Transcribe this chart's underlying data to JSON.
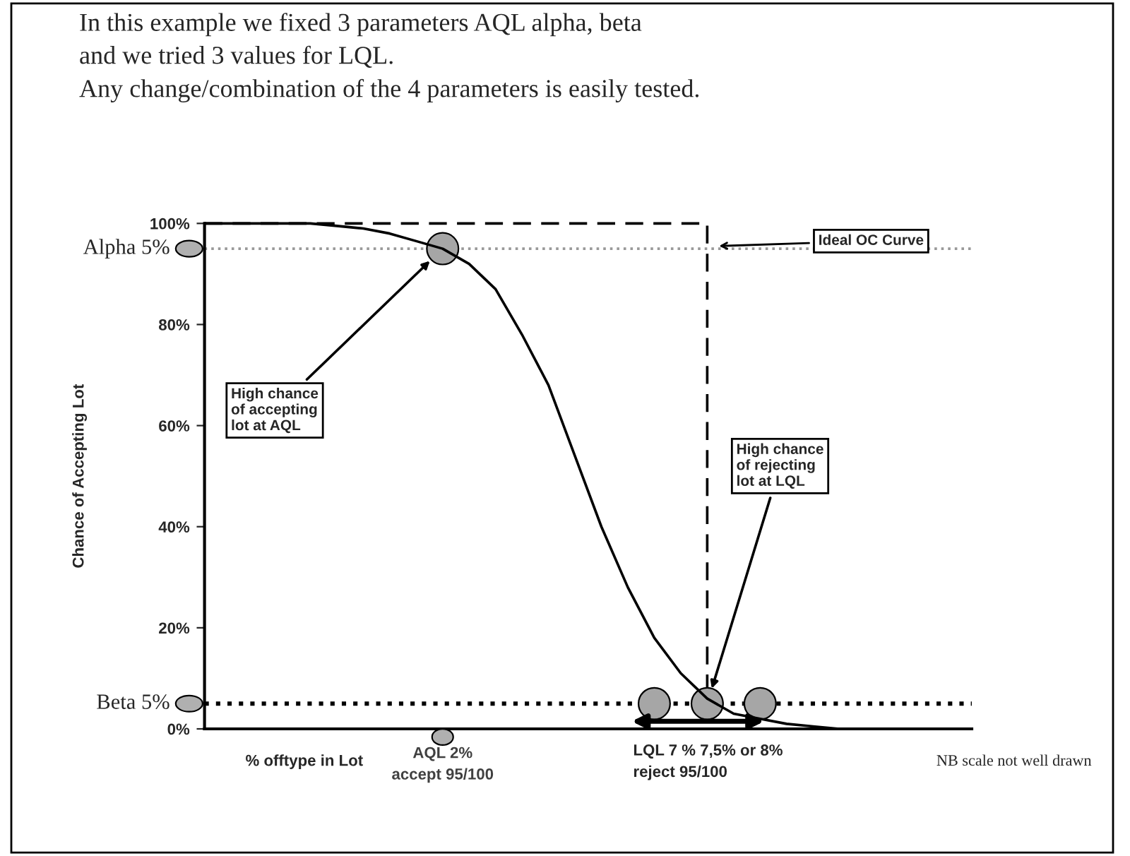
{
  "chart_data": {
    "type": "line",
    "title": "In this example we fixed 3 parameters AQL alpha, beta\nand we tried 3 values for LQL.\nAny change/combination of the 4 parameters is easily tested.",
    "xlabel": "% offtype in Lot",
    "ylabel": "Chance of Accepting Lot",
    "categories": [
      null,
      null,
      null,
      null,
      null,
      null,
      null,
      null,
      null,
      null,
      null,
      null,
      null,
      null,
      null,
      null,
      null,
      null,
      null,
      null,
      null,
      null,
      null,
      null,
      null,
      null,
      null,
      null,
      null,
      null
    ],
    "series": [
      {
        "color": "#000000",
        "line_style": "solid",
        "values": [
          100,
          100,
          100,
          100,
          100,
          99.5,
          99,
          98,
          96.5,
          95,
          92,
          87,
          78,
          68,
          54,
          40,
          28,
          18,
          11,
          6,
          3,
          2,
          1,
          0.5,
          0,
          0,
          0,
          0,
          0,
          0
        ]
      },
      {
        "type": "step",
        "color": "#000000",
        "line_style": "dashed",
        "values": [
          100,
          100,
          100,
          100,
          100,
          100,
          100,
          100,
          100,
          100,
          100,
          100,
          100,
          100,
          100,
          100,
          100,
          100,
          100,
          100,
          0,
          0,
          0,
          0,
          0,
          0,
          0,
          0,
          0,
          0
        ]
      },
      {
        "type": "scatter",
        "color": "#a6a6a6",
        "marker": "circle",
        "values": [
          null,
          null,
          null,
          null,
          null,
          null,
          null,
          null,
          null,
          95,
          null,
          null,
          null,
          null,
          null,
          null,
          null,
          5,
          null,
          5,
          null,
          5,
          null,
          null,
          null,
          null,
          null,
          null,
          null,
          null
        ]
      }
    ],
    "ylim": [
      0,
      100
    ],
    "yticks": [
      {
        "value": 0,
        "label": "0%"
      },
      {
        "value": 20,
        "label": "20%"
      },
      {
        "value": 40,
        "label": "40%"
      },
      {
        "value": 60,
        "label": "60%"
      },
      {
        "value": 80,
        "label": "80%"
      },
      {
        "value": 100,
        "label": "100%"
      }
    ],
    "ref_lines": [
      {
        "axis": "y",
        "value": 95,
        "label": "Alpha 5%",
        "color": "#999999",
        "line_style": "dotted"
      },
      {
        "axis": "y",
        "value": 5,
        "label": "Beta 5%",
        "color": "#000000",
        "line_style": "dotted"
      }
    ],
    "annotations": [
      "Ideal OC Curve",
      "High chance\nof accepting\nlot at AQL",
      "High chance\nof rejecting\nlot at LQL",
      "AQL 2%\naccept 95/100",
      "LQL 7 % 7,5% or 8%\nreject 95/100",
      "NB scale not well drawn"
    ],
    "grid": false,
    "legend": false
  }
}
